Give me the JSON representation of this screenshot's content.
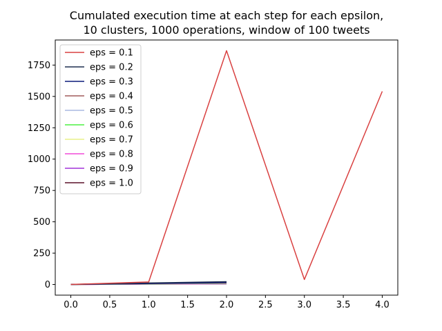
{
  "chart_data": {
    "type": "line",
    "title": [
      "Cumulated execution time at each step for each epsilon,",
      "10 clusters, 1000 operations, window of 100 tweets"
    ],
    "xlabel": "",
    "ylabel": "",
    "xlim": [
      -0.2,
      4.2
    ],
    "ylim": [
      -85,
      1950
    ],
    "xticks": [
      0.0,
      0.5,
      1.0,
      1.5,
      2.0,
      2.5,
      3.0,
      3.5,
      4.0
    ],
    "xtick_labels": [
      "0.0",
      "0.5",
      "1.0",
      "1.5",
      "2.0",
      "2.5",
      "3.0",
      "3.5",
      "4.0"
    ],
    "yticks": [
      0,
      250,
      500,
      750,
      1000,
      1250,
      1500,
      1750
    ],
    "ytick_labels": [
      "0",
      "250",
      "500",
      "750",
      "1000",
      "1250",
      "1500",
      "1750"
    ],
    "grid": false,
    "legend_position": "top-left",
    "series": [
      {
        "name": "eps = 0.1",
        "color": "#d94040",
        "x": [
          0,
          1,
          2,
          3,
          4
        ],
        "y": [
          0,
          20,
          1865,
          40,
          1540
        ]
      },
      {
        "name": "eps = 0.2",
        "color": "#1c2d4f",
        "x": [
          0,
          1,
          2
        ],
        "y": [
          0,
          12,
          22
        ]
      },
      {
        "name": "eps = 0.3",
        "color": "#0a1a7a",
        "x": [
          0,
          1,
          2
        ],
        "y": [
          0,
          8,
          15
        ]
      },
      {
        "name": "eps = 0.4",
        "color": "#a05a5a",
        "x": [
          0,
          1,
          2
        ],
        "y": [
          0,
          7,
          12
        ]
      },
      {
        "name": "eps = 0.5",
        "color": "#a8b8e0",
        "x": [
          0,
          1,
          2
        ],
        "y": [
          0,
          6,
          10
        ]
      },
      {
        "name": "eps = 0.6",
        "color": "#4cf040",
        "x": [
          0,
          1,
          2
        ],
        "y": [
          0,
          5,
          9
        ]
      },
      {
        "name": "eps = 0.7",
        "color": "#e8f088",
        "x": [
          0,
          1,
          2
        ],
        "y": [
          0,
          5,
          8
        ]
      },
      {
        "name": "eps = 0.8",
        "color": "#f048d8",
        "x": [
          0,
          1,
          2
        ],
        "y": [
          0,
          4,
          7
        ]
      },
      {
        "name": "eps = 0.9",
        "color": "#a030d8",
        "x": [
          0,
          1,
          2
        ],
        "y": [
          0,
          4,
          6
        ]
      },
      {
        "name": "eps = 1.0",
        "color": "#5a1028",
        "x": [
          0,
          1,
          2
        ],
        "y": [
          0,
          3,
          5
        ]
      }
    ]
  }
}
